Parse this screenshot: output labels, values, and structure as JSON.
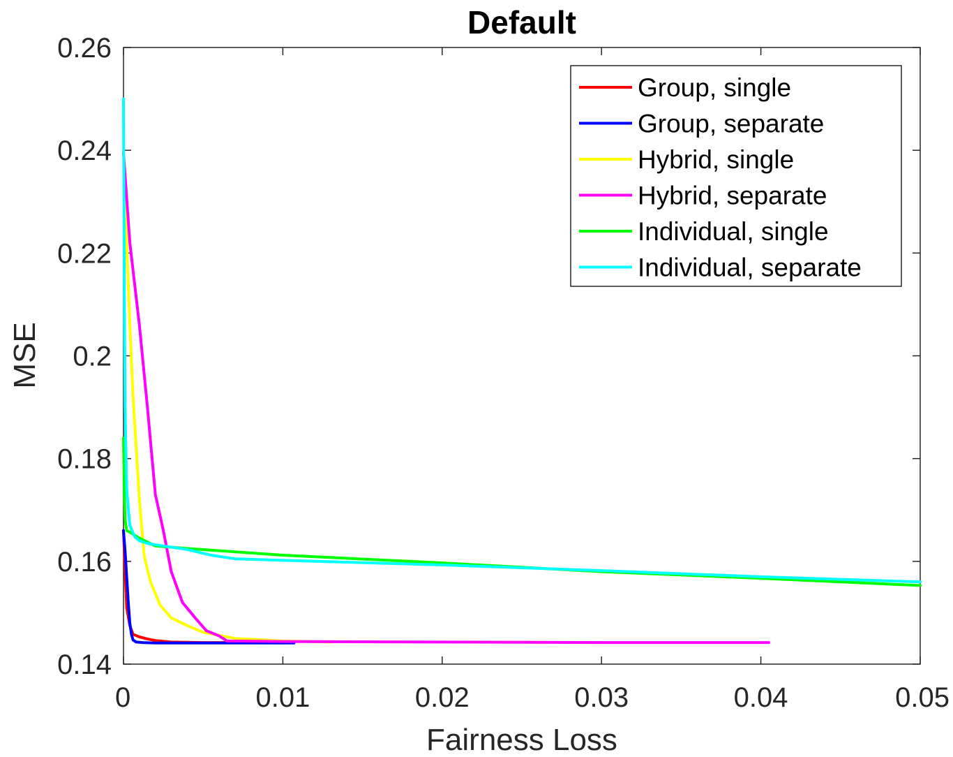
{
  "chart_data": {
    "type": "line",
    "title": "Default",
    "xlabel": "Fairness Loss",
    "ylabel": "MSE",
    "xlim": [
      0,
      0.05
    ],
    "ylim": [
      0.14,
      0.26
    ],
    "xticks": [
      {
        "value": 0,
        "label": "0"
      },
      {
        "value": 0.01,
        "label": "0.01"
      },
      {
        "value": 0.02,
        "label": "0.02"
      },
      {
        "value": 0.03,
        "label": "0.03"
      },
      {
        "value": 0.04,
        "label": "0.04"
      },
      {
        "value": 0.05,
        "label": "0.05"
      }
    ],
    "yticks": [
      {
        "value": 0.14,
        "label": "0.14"
      },
      {
        "value": 0.16,
        "label": "0.16"
      },
      {
        "value": 0.18,
        "label": "0.18"
      },
      {
        "value": 0.2,
        "label": "0.2"
      },
      {
        "value": 0.22,
        "label": "0.22"
      },
      {
        "value": 0.24,
        "label": "0.24"
      },
      {
        "value": 0.26,
        "label": "0.26"
      }
    ],
    "grid": false,
    "legend_position": "top-right",
    "series": [
      {
        "name": "Group, single",
        "color": "#ff0000",
        "x": [
          0.0,
          0.0001,
          0.0002,
          0.0004,
          0.0006,
          0.001,
          0.0015,
          0.002,
          0.003,
          0.005,
          0.0065
        ],
        "y": [
          0.166,
          0.158,
          0.151,
          0.1475,
          0.1458,
          0.1453,
          0.1449,
          0.1446,
          0.1443,
          0.1442,
          0.1442
        ]
      },
      {
        "name": "Group, separate",
        "color": "#0000ff",
        "x": [
          0.0,
          0.0001,
          0.0002,
          0.0003,
          0.0004,
          0.0005,
          0.0006,
          0.0008,
          0.0012,
          0.002,
          0.004,
          0.007,
          0.0107
        ],
        "y": [
          0.166,
          0.162,
          0.157,
          0.152,
          0.148,
          0.1458,
          0.1447,
          0.1443,
          0.1442,
          0.1441,
          0.1441,
          0.1441,
          0.1441
        ]
      },
      {
        "name": "Hybrid, single",
        "color": "#ffff00",
        "x": [
          0.0,
          0.0002,
          0.0004,
          0.0006,
          0.0008,
          0.001,
          0.0013,
          0.0017,
          0.0023,
          0.003,
          0.004,
          0.005,
          0.007,
          0.01,
          0.013
        ],
        "y": [
          0.24,
          0.222,
          0.206,
          0.192,
          0.182,
          0.172,
          0.161,
          0.156,
          0.1515,
          0.149,
          0.1475,
          0.1462,
          0.145,
          0.1445,
          0.1443
        ]
      },
      {
        "name": "Hybrid, separate",
        "color": "#ff00ff",
        "x": [
          0.0,
          0.0004,
          0.001,
          0.0015,
          0.002,
          0.0025,
          0.003,
          0.0037,
          0.0045,
          0.0052,
          0.006,
          0.0065,
          0.01,
          0.02,
          0.03,
          0.0405
        ],
        "y": [
          0.2395,
          0.222,
          0.206,
          0.19,
          0.173,
          0.166,
          0.158,
          0.152,
          0.149,
          0.1465,
          0.1455,
          0.1445,
          0.1444,
          0.1443,
          0.1442,
          0.1442
        ]
      },
      {
        "name": "Individual, single",
        "color": "#00ff00",
        "x": [
          0.0,
          5e-05,
          0.0001,
          0.0002,
          0.0005,
          0.001,
          0.002,
          0.004,
          0.01,
          0.02,
          0.03,
          0.04,
          0.05
        ],
        "y": [
          0.184,
          0.174,
          0.168,
          0.166,
          0.1655,
          0.1645,
          0.163,
          0.1625,
          0.1612,
          0.1597,
          0.158,
          0.1567,
          0.1553
        ]
      },
      {
        "name": "Individual, separate",
        "color": "#00ffff",
        "x": [
          0.0,
          5e-05,
          0.0001,
          0.0002,
          0.0004,
          0.0007,
          0.001,
          0.0015,
          0.0025,
          0.004,
          0.0055,
          0.007,
          0.01,
          0.02,
          0.03,
          0.04,
          0.05
        ],
        "y": [
          0.25,
          0.215,
          0.19,
          0.174,
          0.167,
          0.1648,
          0.164,
          0.1635,
          0.163,
          0.1623,
          0.1612,
          0.1605,
          0.1602,
          0.1593,
          0.1582,
          0.157,
          0.156
        ]
      }
    ]
  }
}
